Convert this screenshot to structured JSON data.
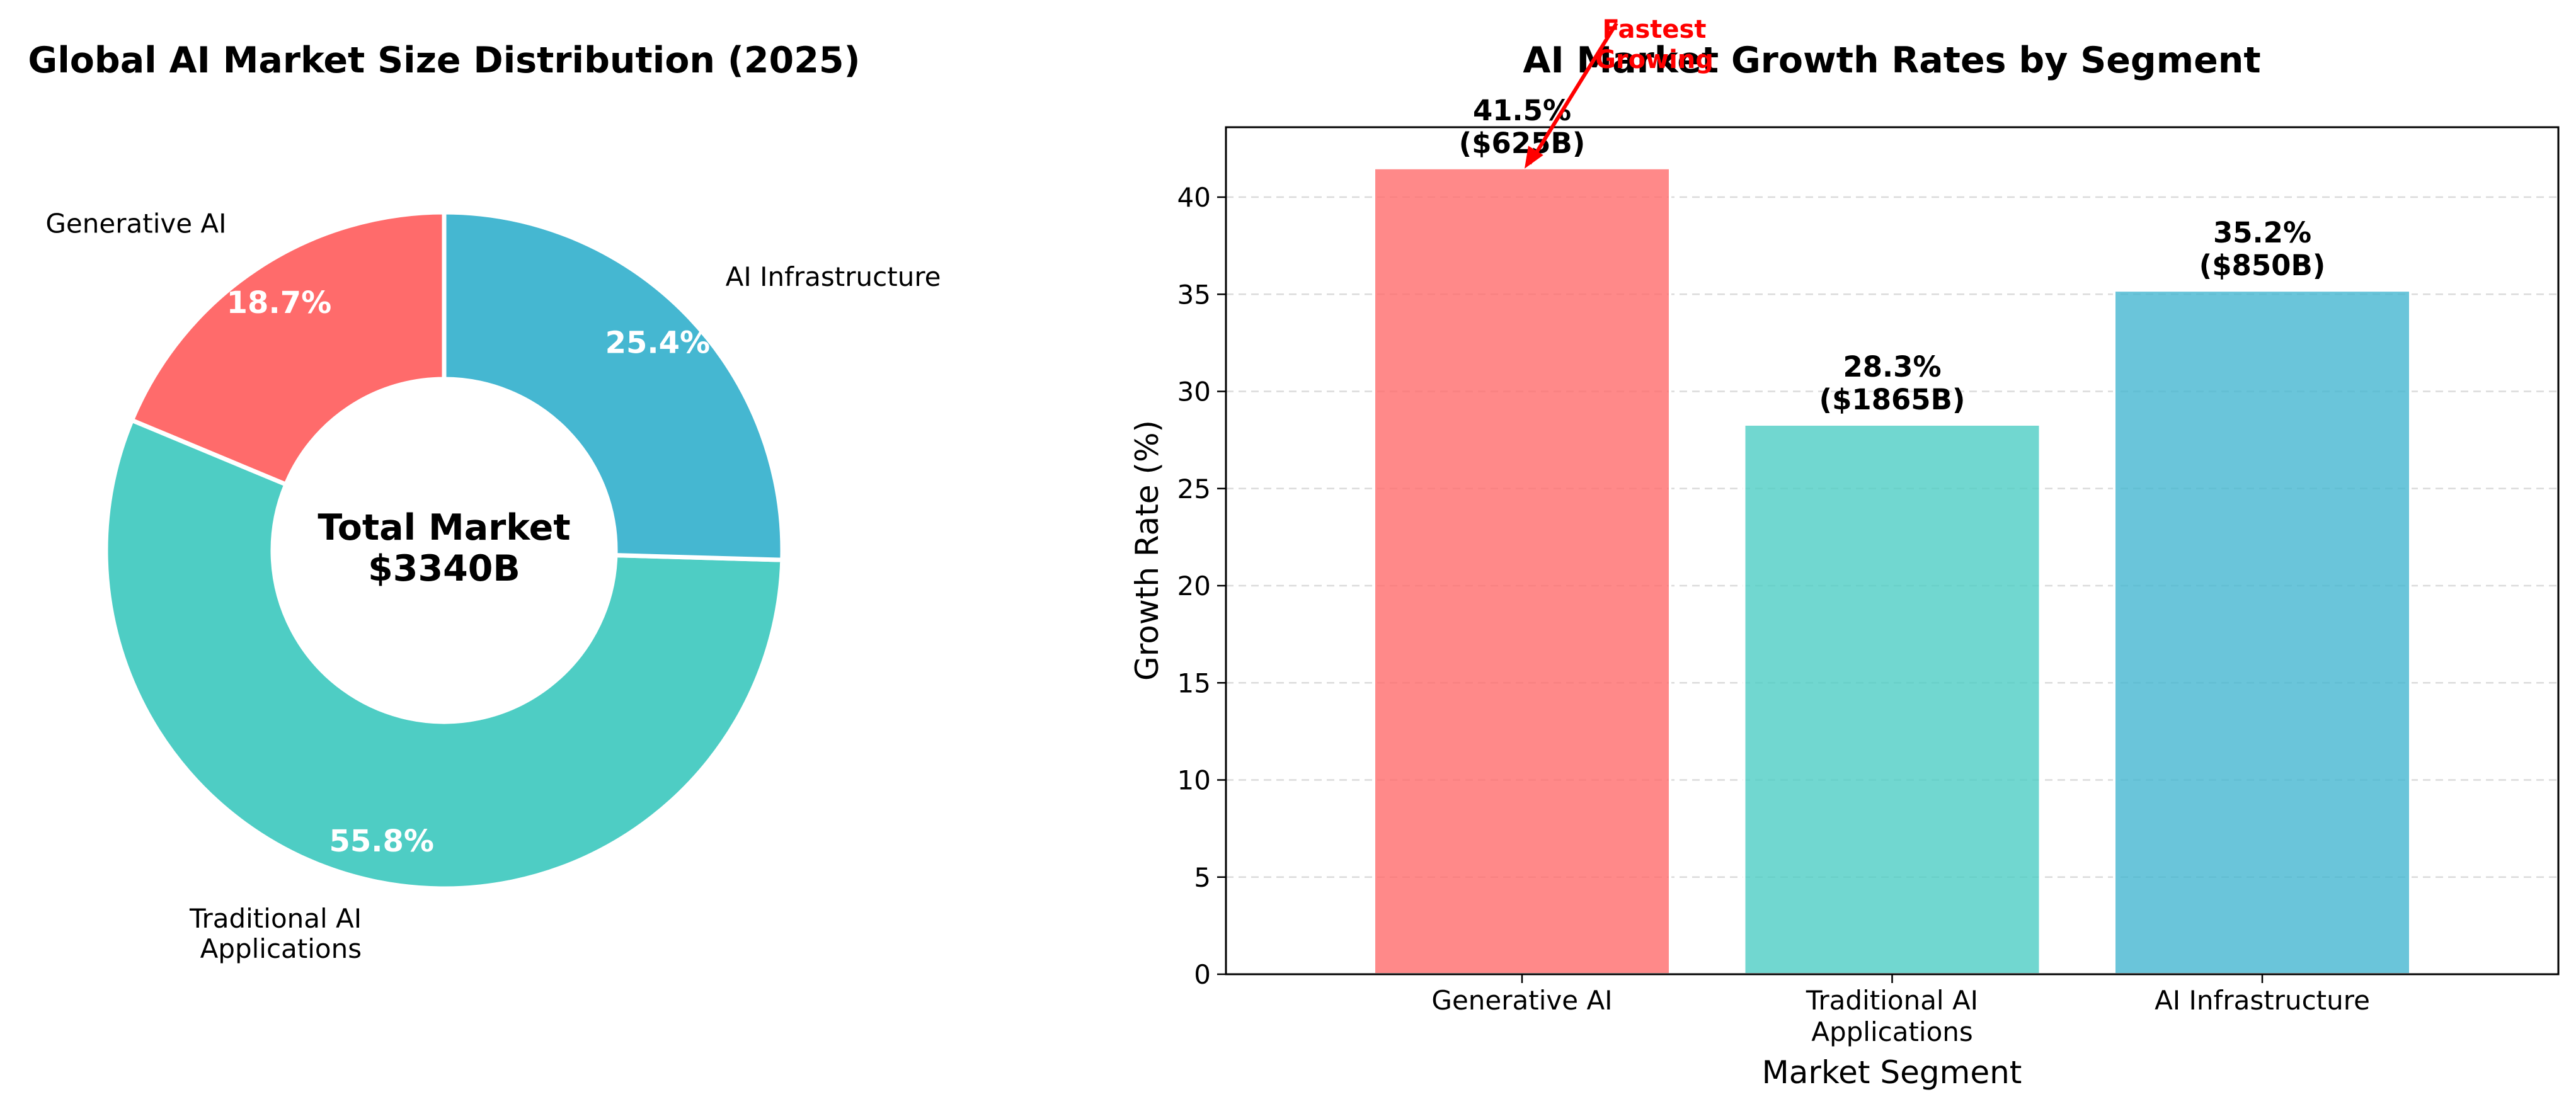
{
  "chart_data": [
    {
      "type": "pie",
      "title": "Global AI Market Size Distribution (2025)",
      "center_text": [
        "Total Market",
        "$3340B"
      ],
      "categories": [
        "Generative AI",
        "Traditional AI Applications",
        "AI Infrastructure"
      ],
      "values": [
        625,
        1865,
        850
      ],
      "percent_labels": [
        "18.7%",
        "55.8%",
        "25.4%"
      ],
      "colors": [
        "#ff6b6b",
        "#4ecdc4",
        "#45b7d1"
      ],
      "donut": true,
      "start_angle_deg": 90,
      "direction": "counterclockwise"
    },
    {
      "type": "bar",
      "title": "AI Market Growth Rates by Segment",
      "xlabel": "Market Segment",
      "ylabel": "Growth Rate (%)",
      "categories": [
        "Generative AI",
        "Traditional AI Applications",
        "AI Infrastructure"
      ],
      "values": [
        41.5,
        28.3,
        35.2
      ],
      "bar_labels": [
        [
          "41.5%",
          "($625B)"
        ],
        [
          "28.3%",
          "($1865B)"
        ],
        [
          "35.2%",
          "($850B)"
        ]
      ],
      "colors": [
        "#ff6b6b",
        "#4ecdc4",
        "#45b7d1"
      ],
      "ylim": [
        0,
        43.6
      ],
      "yticks": [
        0,
        5,
        10,
        15,
        20,
        25,
        30,
        35,
        40
      ],
      "grid": "y-dashed",
      "annotation": {
        "text": [
          "Fastest",
          "Growing"
        ],
        "target_category": "Generative AI",
        "color": "#ff0000"
      }
    }
  ]
}
